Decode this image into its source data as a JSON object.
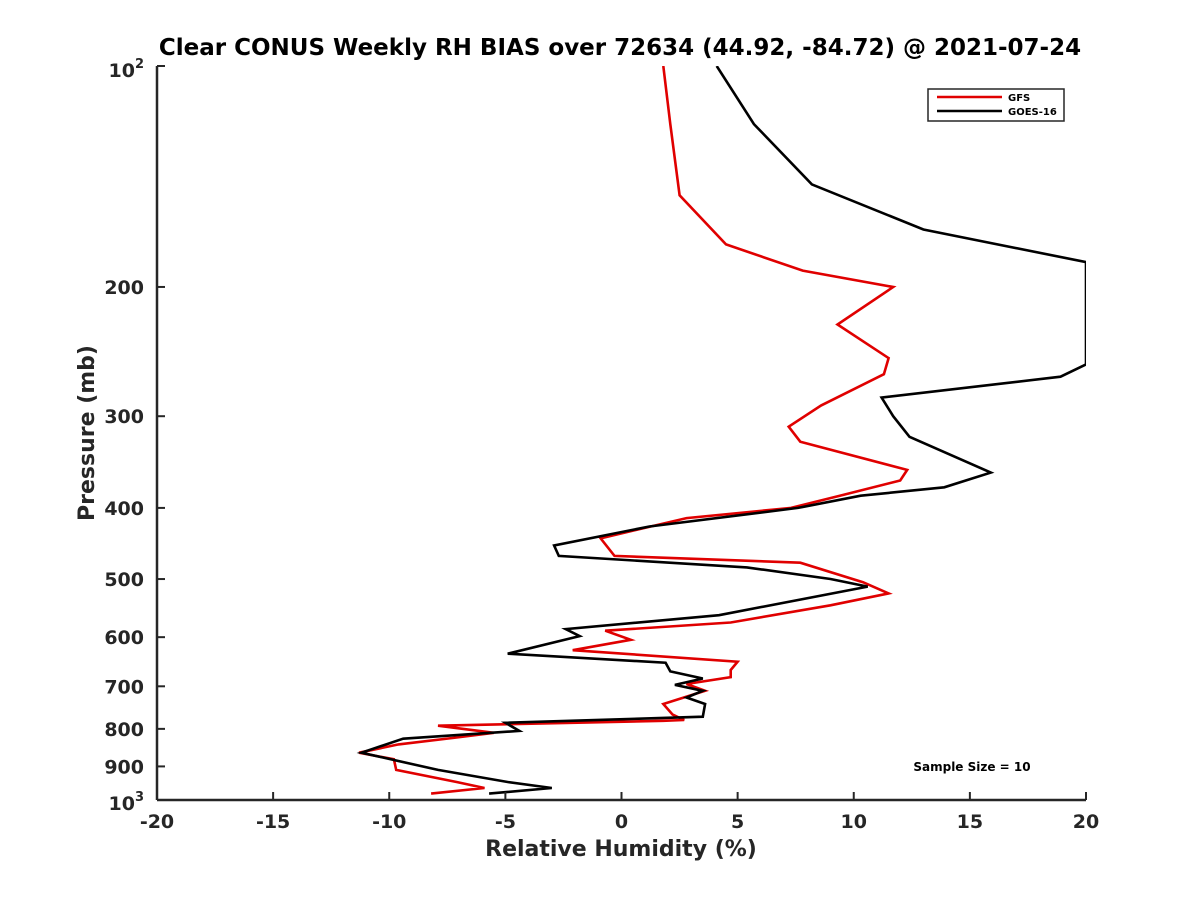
{
  "chart_data": {
    "type": "line",
    "title": "Clear CONUS Weekly RH BIAS over 72634 (44.92, -84.72) @ 2021-07-24",
    "xlabel": "Relative Humidity (%)",
    "ylabel": "Pressure (mb)",
    "xlim": [
      -20,
      20
    ],
    "ylim": [
      100,
      1000
    ],
    "yscale": "log",
    "y_reversed": true,
    "grid": false,
    "legend_position": "top-right",
    "x_ticks": [
      -20,
      -15,
      -10,
      -5,
      0,
      5,
      10,
      15,
      20
    ],
    "x_tick_labels": [
      "-20",
      "-15",
      "-10",
      "-5",
      "0",
      "5",
      "10",
      "15",
      "20"
    ],
    "y_ticks": [
      200,
      300,
      400,
      500,
      600,
      700,
      800,
      900
    ],
    "y_tick_labels": [
      "200",
      "300",
      "400",
      "500",
      "600",
      "700",
      "800",
      "900"
    ],
    "y_edge_labels": {
      "top": {
        "base": "10",
        "exp": "2"
      },
      "bottom": {
        "base": "10",
        "exp": "3"
      }
    },
    "annotation": "Sample Size = 10",
    "series": [
      {
        "name": "GFS",
        "color": "#e00000",
        "points": [
          [
            1.8,
            100
          ],
          [
            2.1,
            120
          ],
          [
            2.5,
            150
          ],
          [
            4.5,
            175
          ],
          [
            7.8,
            190
          ],
          [
            11.7,
            200
          ],
          [
            9.3,
            225
          ],
          [
            11.5,
            250
          ],
          [
            11.3,
            263
          ],
          [
            8.6,
            290
          ],
          [
            7.2,
            310
          ],
          [
            7.7,
            325
          ],
          [
            12.3,
            355
          ],
          [
            12.0,
            367
          ],
          [
            9.4,
            385
          ],
          [
            7.3,
            400
          ],
          [
            2.8,
            413
          ],
          [
            -0.9,
            440
          ],
          [
            -0.3,
            465
          ],
          [
            7.7,
            475
          ],
          [
            10.4,
            505
          ],
          [
            11.5,
            523
          ],
          [
            9.0,
            543
          ],
          [
            4.7,
            573
          ],
          [
            -0.7,
            588
          ],
          [
            0.4,
            605
          ],
          [
            -2.1,
            625
          ],
          [
            5.0,
            648
          ],
          [
            4.7,
            665
          ],
          [
            4.7,
            680
          ],
          [
            2.8,
            695
          ],
          [
            3.6,
            710
          ],
          [
            1.8,
            740
          ],
          [
            2.2,
            765
          ],
          [
            2.7,
            778
          ],
          [
            1.8,
            780
          ],
          [
            -7.9,
            792
          ],
          [
            -5.5,
            810
          ],
          [
            -7.1,
            822
          ],
          [
            -9.6,
            840
          ],
          [
            -11.3,
            862
          ],
          [
            -9.8,
            880
          ],
          [
            -9.7,
            910
          ],
          [
            -7.1,
            945
          ],
          [
            -5.9,
            963
          ],
          [
            -8.2,
            980
          ]
        ]
      },
      {
        "name": "GOES-16",
        "color": "#000000",
        "points": [
          [
            4.1,
            100
          ],
          [
            5.7,
            120
          ],
          [
            8.2,
            145
          ],
          [
            13.0,
            167
          ],
          [
            20.0,
            185
          ],
          [
            20.0,
            255
          ],
          [
            18.9,
            265
          ],
          [
            11.2,
            283
          ],
          [
            11.7,
            300
          ],
          [
            12.4,
            320
          ],
          [
            15.9,
            358
          ],
          [
            13.9,
            375
          ],
          [
            10.3,
            385
          ],
          [
            7.6,
            400
          ],
          [
            1.2,
            424
          ],
          [
            -2.9,
            450
          ],
          [
            -2.7,
            465
          ],
          [
            5.4,
            482
          ],
          [
            9.0,
            500
          ],
          [
            10.6,
            512
          ],
          [
            4.2,
            560
          ],
          [
            -2.4,
            585
          ],
          [
            -1.8,
            598
          ],
          [
            -4.9,
            632
          ],
          [
            1.9,
            650
          ],
          [
            2.1,
            668
          ],
          [
            3.5,
            683
          ],
          [
            2.3,
            697
          ],
          [
            3.5,
            710
          ],
          [
            2.8,
            725
          ],
          [
            3.6,
            740
          ],
          [
            3.5,
            770
          ],
          [
            -5.0,
            785
          ],
          [
            -4.4,
            805
          ],
          [
            -9.4,
            825
          ],
          [
            -11.2,
            862
          ],
          [
            -7.9,
            910
          ],
          [
            -4.9,
            945
          ],
          [
            -3.0,
            963
          ],
          [
            -5.7,
            980
          ]
        ]
      }
    ]
  }
}
